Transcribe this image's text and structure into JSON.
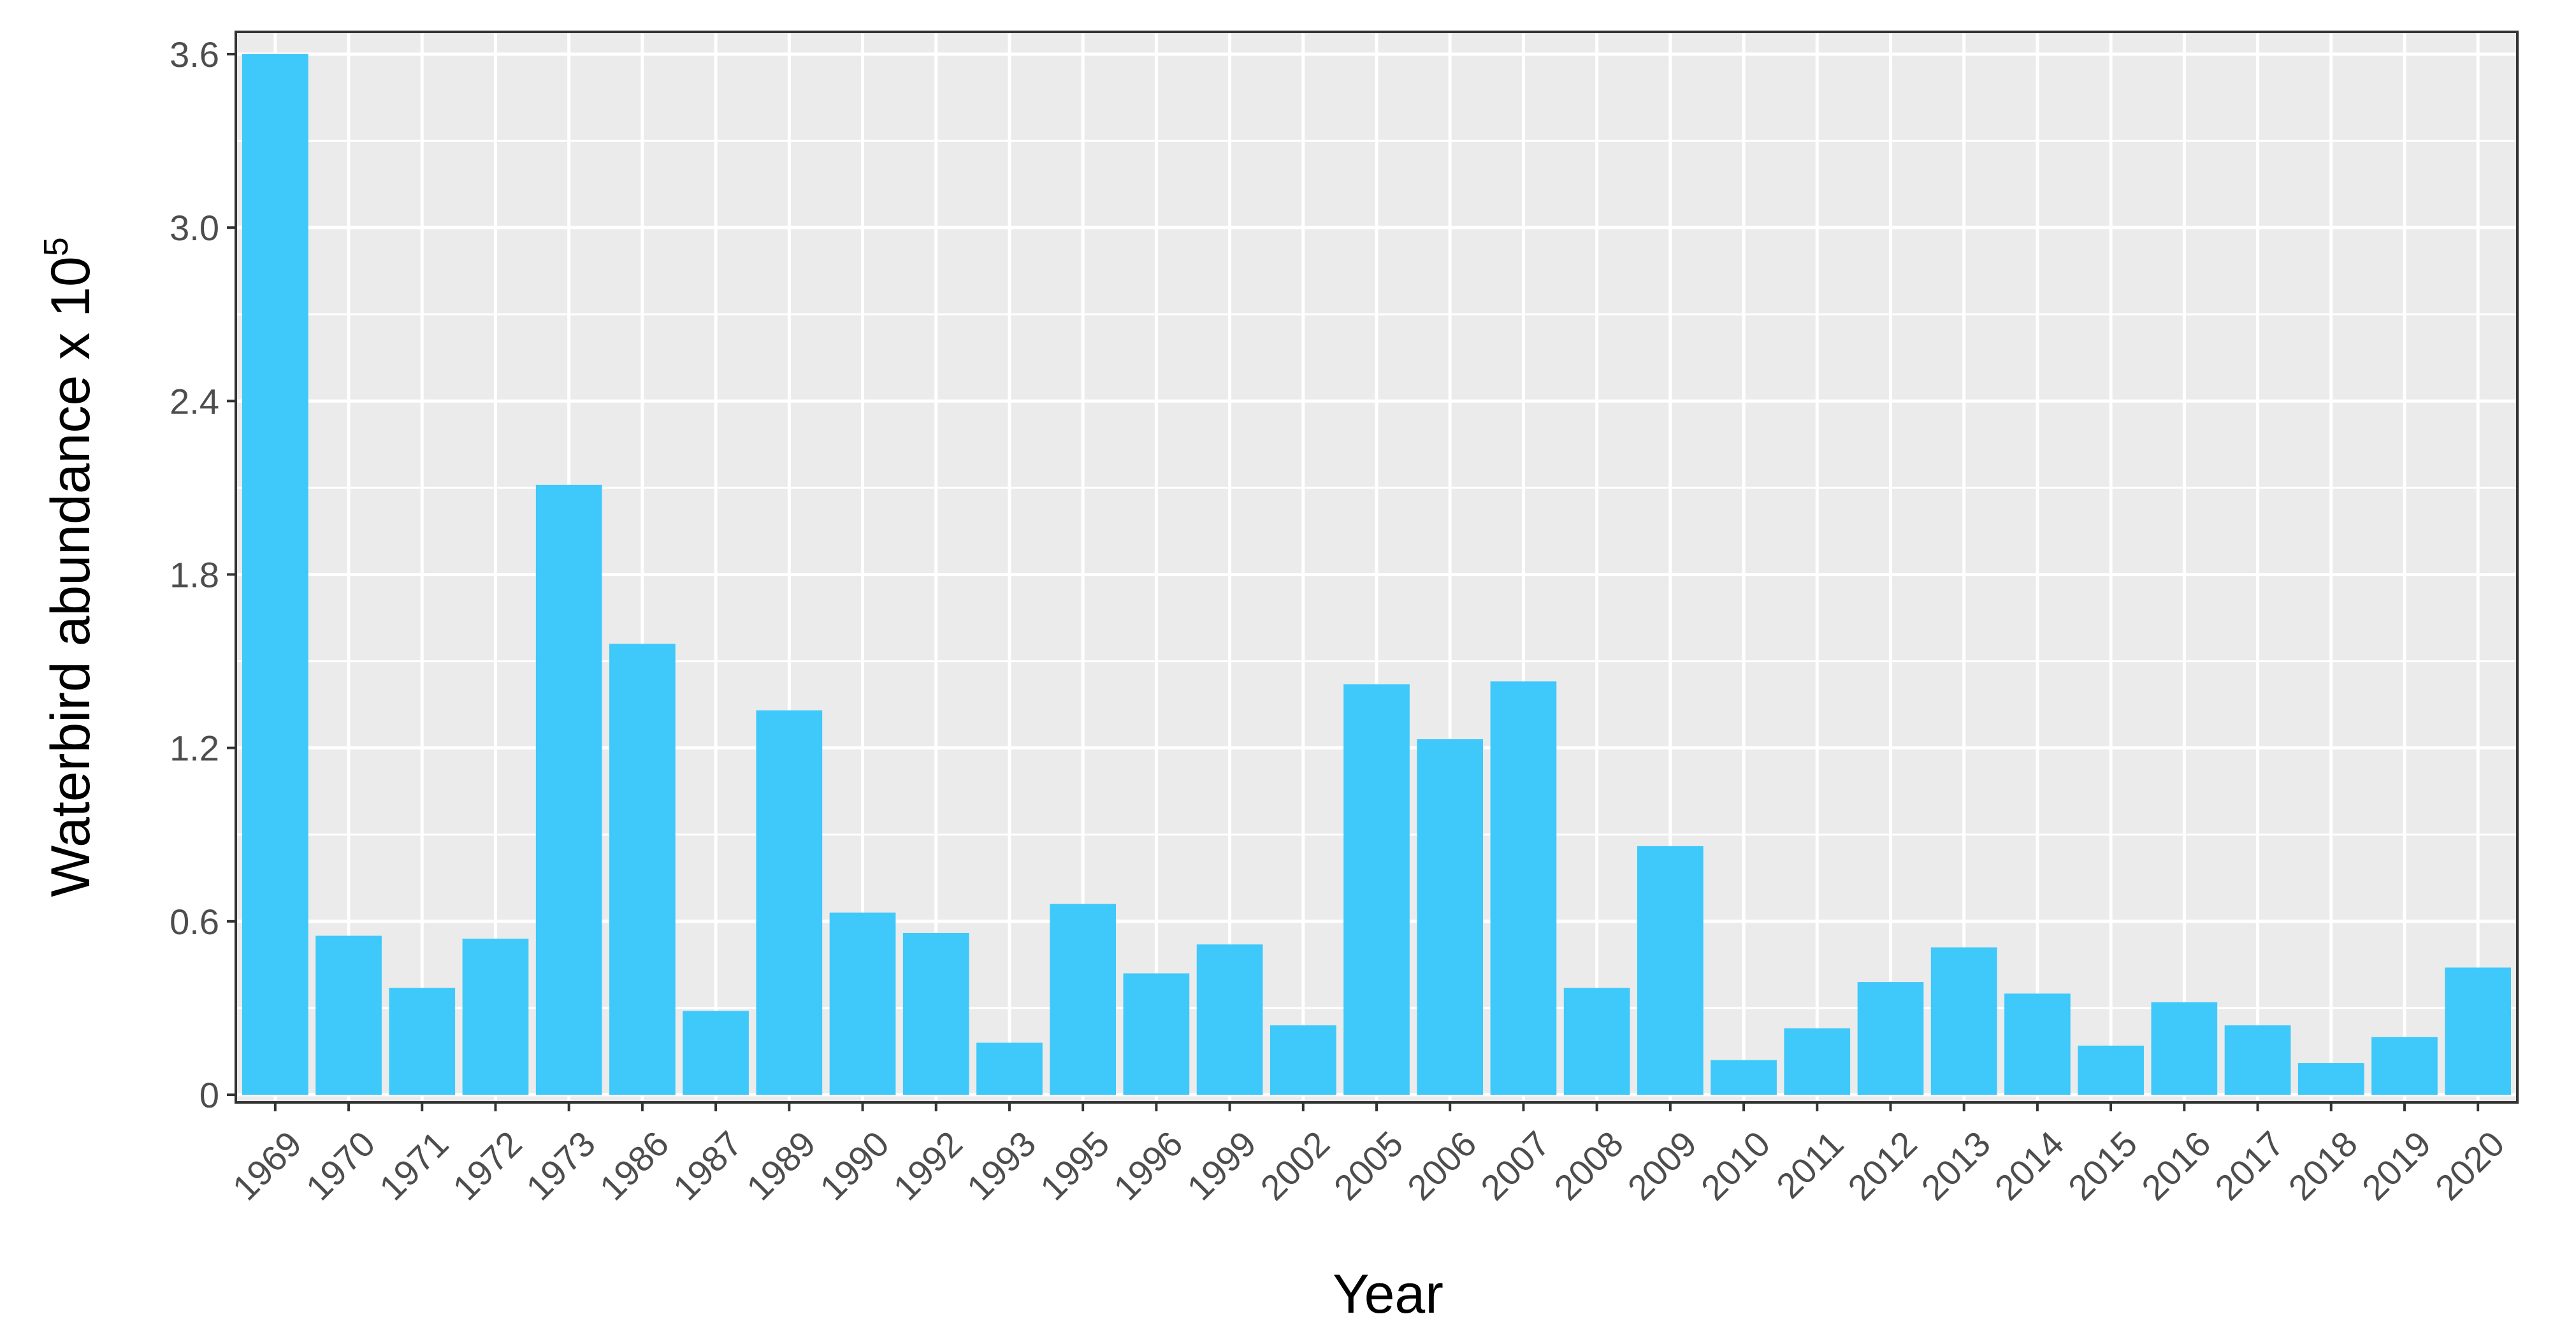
{
  "chart_data": {
    "type": "bar",
    "xlabel": "Year",
    "ylabel": "Waterbird abundance x 10",
    "ylabel_exponent": "5",
    "categories": [
      "1969",
      "1970",
      "1971",
      "1972",
      "1973",
      "1986",
      "1987",
      "1989",
      "1990",
      "1992",
      "1993",
      "1995",
      "1996",
      "1999",
      "2002",
      "2005",
      "2006",
      "2007",
      "2008",
      "2009",
      "2010",
      "2011",
      "2012",
      "2013",
      "2014",
      "2015",
      "2016",
      "2017",
      "2018",
      "2019",
      "2020"
    ],
    "values": [
      3.6,
      0.55,
      0.37,
      0.54,
      2.11,
      1.56,
      0.29,
      1.33,
      0.63,
      0.56,
      0.18,
      0.66,
      0.42,
      0.52,
      0.24,
      1.42,
      1.23,
      1.43,
      0.37,
      0.86,
      0.12,
      0.23,
      0.39,
      0.51,
      0.35,
      0.17,
      0.32,
      0.24,
      0.11,
      0.2,
      0.44
    ],
    "yticks": [
      0,
      0.6,
      1.2,
      1.8,
      2.4,
      3.0,
      3.6
    ],
    "ytick_labels": [
      "0",
      "0.6",
      "1.2",
      "1.8",
      "2.4",
      "3.0",
      "3.6"
    ],
    "ylim": [
      0,
      3.6
    ],
    "grid": true,
    "colors": {
      "bar": "#3fc8fa",
      "panel": "#ebebeb",
      "grid": "#ffffff",
      "border": "#333333"
    }
  }
}
